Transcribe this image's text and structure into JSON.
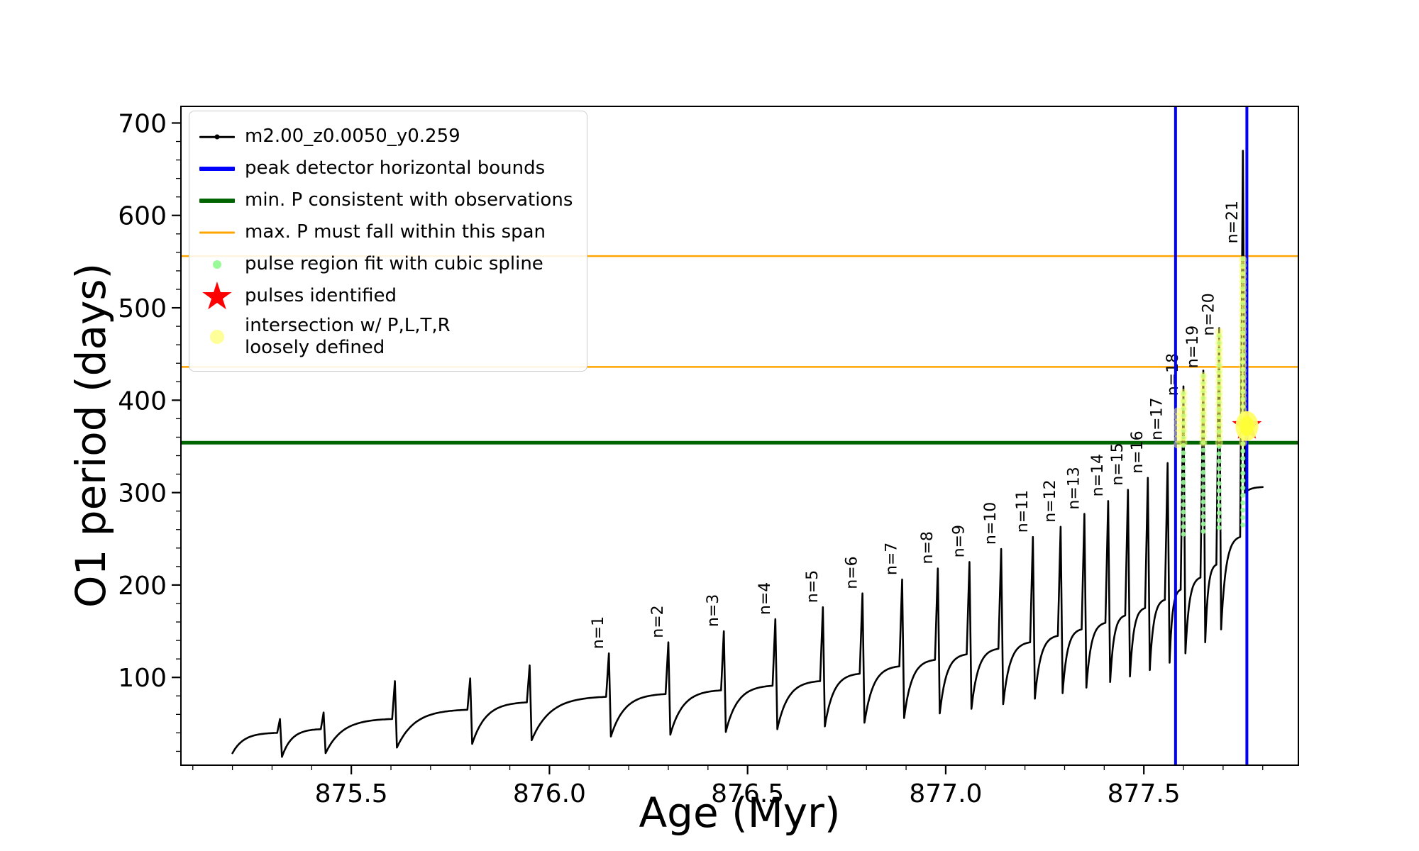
{
  "chart_data": {
    "type": "line",
    "title": "",
    "xlabel": "Age (Myr)",
    "ylabel": "O1 period (days)",
    "xlim": [
      875.07,
      877.89
    ],
    "ylim": [
      5,
      718
    ],
    "xticks": [
      875.5,
      876.0,
      876.5,
      877.0,
      877.5
    ],
    "xtick_labels": [
      "875.5",
      "876.0",
      "876.5",
      "877.0",
      "877.5"
    ],
    "yticks": [
      100,
      200,
      300,
      400,
      500,
      600,
      700
    ],
    "ytick_labels": [
      "100",
      "200",
      "300",
      "400",
      "500",
      "600",
      "700"
    ],
    "x_minor_step": 0.1,
    "y_minor_step": 20,
    "grid": false,
    "legend_position": "upper-left",
    "series": {
      "label": "m2.00_z0.0050_y0.259",
      "color": "#000000",
      "start": {
        "x": 875.2,
        "y": 18
      },
      "end": {
        "x": 877.8,
        "y": 306
      },
      "pulses": [
        {
          "x": 875.32,
          "peak": 55,
          "pre": 40,
          "drop": 14
        },
        {
          "x": 875.43,
          "peak": 62,
          "pre": 44,
          "drop": 18
        },
        {
          "x": 875.61,
          "peak": 96,
          "pre": 55,
          "drop": 24
        },
        {
          "x": 875.8,
          "peak": 99,
          "pre": 65,
          "drop": 28
        },
        {
          "x": 875.95,
          "peak": 113,
          "pre": 73,
          "drop": 32
        },
        {
          "x": 876.15,
          "peak": 126,
          "pre": 79,
          "drop": 36,
          "label": "n=1"
        },
        {
          "x": 876.3,
          "peak": 138,
          "pre": 82,
          "drop": 38,
          "label": "n=2"
        },
        {
          "x": 876.44,
          "peak": 150,
          "pre": 86,
          "drop": 41,
          "label": "n=3"
        },
        {
          "x": 876.57,
          "peak": 163,
          "pre": 91,
          "drop": 44,
          "label": "n=4"
        },
        {
          "x": 876.69,
          "peak": 176,
          "pre": 96,
          "drop": 47,
          "label": "n=5"
        },
        {
          "x": 876.79,
          "peak": 191,
          "pre": 104,
          "drop": 51,
          "label": "n=6"
        },
        {
          "x": 876.89,
          "peak": 206,
          "pre": 112,
          "drop": 56,
          "label": "n=7"
        },
        {
          "x": 876.98,
          "peak": 218,
          "pre": 119,
          "drop": 61,
          "label": "n=8"
        },
        {
          "x": 877.06,
          "peak": 225,
          "pre": 125,
          "drop": 66,
          "label": "n=9"
        },
        {
          "x": 877.14,
          "peak": 239,
          "pre": 131,
          "drop": 71,
          "label": "n=10"
        },
        {
          "x": 877.22,
          "peak": 252,
          "pre": 138,
          "drop": 77,
          "label": "n=11"
        },
        {
          "x": 877.29,
          "peak": 263,
          "pre": 145,
          "drop": 83,
          "label": "n=12"
        },
        {
          "x": 877.35,
          "peak": 277,
          "pre": 152,
          "drop": 89,
          "label": "n=13"
        },
        {
          "x": 877.41,
          "peak": 291,
          "pre": 159,
          "drop": 95,
          "label": "n=14"
        },
        {
          "x": 877.46,
          "peak": 303,
          "pre": 167,
          "drop": 101,
          "label": "n=15"
        },
        {
          "x": 877.51,
          "peak": 316,
          "pre": 175,
          "drop": 108,
          "label": "n=16"
        },
        {
          "x": 877.56,
          "peak": 332,
          "pre": 184,
          "drop": 116,
          "label": "n=17",
          "label_y": 352
        },
        {
          "x": 877.6,
          "peak": 415,
          "pre": 195,
          "drop": 126,
          "label": "n=18",
          "label_y": 400
        },
        {
          "x": 877.65,
          "peak": 432,
          "pre": 208,
          "drop": 138,
          "label": "n=19",
          "label_y": 430
        },
        {
          "x": 877.69,
          "peak": 478,
          "pre": 222,
          "drop": 152,
          "label": "n=20",
          "label_y": 465
        },
        {
          "x": 877.75,
          "peak": 670,
          "pre": 252,
          "drop": 300,
          "label": "n=21",
          "label_y": 565
        }
      ]
    },
    "peak_bounds": {
      "label": "peak detector horizontal bounds",
      "color": "#0000ff",
      "xs": [
        877.58,
        877.76
      ]
    },
    "min_period": {
      "label": "min. P consistent with observations",
      "color": "#006400",
      "y": 354
    },
    "max_period_span": {
      "label": "max. P must fall within this span",
      "color": "#ffa500",
      "ys": [
        436,
        556
      ]
    },
    "spline_fit": {
      "label": "pulse region fit with cubic spline",
      "color": "#98fb98",
      "columns": [
        {
          "x": 877.6,
          "y0": 255,
          "y1": 410
        },
        {
          "x": 877.65,
          "y0": 258,
          "y1": 428
        },
        {
          "x": 877.69,
          "y0": 262,
          "y1": 474
        },
        {
          "x": 877.75,
          "y0": 265,
          "y1": 555
        }
      ]
    },
    "pulses_identified": {
      "label": "pulses identified",
      "color": "#ff0000",
      "points": [
        {
          "x": 877.76,
          "y": 372
        }
      ]
    },
    "intersection": {
      "label": "intersection w/ P,L,T,R\nloosely defined",
      "color": "#ffff66",
      "columns": [
        {
          "x": 877.585,
          "y0": 352,
          "y1": 392
        },
        {
          "x": 877.6,
          "y0": 354,
          "y1": 410
        },
        {
          "x": 877.65,
          "y0": 354,
          "y1": 430
        },
        {
          "x": 877.69,
          "y0": 354,
          "y1": 476
        },
        {
          "x": 877.75,
          "y0": 354,
          "y1": 556
        }
      ],
      "blob": {
        "x": 877.76,
        "y": 372
      }
    }
  },
  "legend": {
    "items": [
      {
        "marker": "line-dot",
        "color": "#000000",
        "label": "m2.00_z0.0050_y0.259"
      },
      {
        "marker": "thick-line",
        "color": "#0000ff",
        "label": "peak detector horizontal bounds"
      },
      {
        "marker": "thick-line",
        "color": "#006400",
        "label": "min. P consistent with observations"
      },
      {
        "marker": "line",
        "color": "#ffa500",
        "label": "max. P must fall within this span"
      },
      {
        "marker": "dot",
        "color": "#98fb98",
        "label": "pulse region fit with cubic spline"
      },
      {
        "marker": "star",
        "color": "#ff0000",
        "label": "pulses identified"
      },
      {
        "marker": "big-dot",
        "color": "#ffff99",
        "label": "intersection w/ P,L,T,R\nloosely defined"
      }
    ]
  }
}
